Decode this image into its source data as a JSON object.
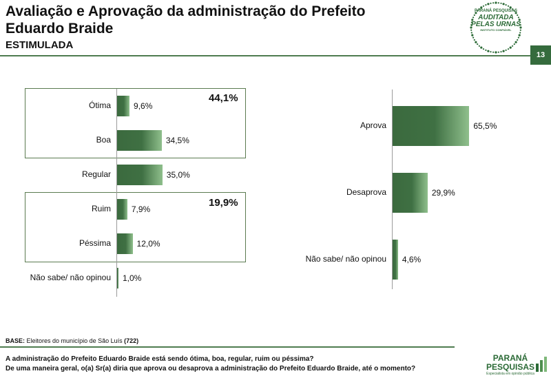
{
  "header": {
    "title": "Avaliação e Aprovação da administração do Prefeito Eduardo Braide",
    "subtitle": "ESTIMULADA",
    "page_number": "13"
  },
  "seal": {
    "line1": "PARANÁ PESQUISAS",
    "line2": "AUDITADA",
    "line3": "PELAS URNAS",
    "line4": "INSTITUTO CONFIÁVEL"
  },
  "groups": {
    "positive_total": "44,1%",
    "negative_total": "19,9%"
  },
  "chart_data": [
    {
      "type": "bar",
      "orientation": "horizontal",
      "categories": [
        "Ótima",
        "Boa",
        "Regular",
        "Ruim",
        "Péssima",
        "Não sabe/ não opinou"
      ],
      "values": [
        9.6,
        34.5,
        35.0,
        7.9,
        12.0,
        1.0
      ],
      "labels": [
        "9,6%",
        "34,5%",
        "35,0%",
        "7,9%",
        "12,0%",
        "1,0%"
      ],
      "xlim": [
        0,
        100
      ],
      "unit": "%"
    },
    {
      "type": "bar",
      "orientation": "horizontal",
      "categories": [
        "Aprova",
        "Desaprova",
        "Não sabe/ não opinou"
      ],
      "values": [
        65.5,
        29.9,
        4.6
      ],
      "labels": [
        "65,5%",
        "29,9%",
        "4,6%"
      ],
      "xlim": [
        0,
        100
      ],
      "unit": "%"
    }
  ],
  "footer": {
    "base_label": "BASE:",
    "base_text": "Eleitores do município de São Luís",
    "base_count": "(722)",
    "question1": "A administração do Prefeito Eduardo Braide está sendo ótima, boa, regular, ruim ou péssima?",
    "question2": "De uma maneira geral, o(a) Sr(a) diria que aprova ou desaprova a administração do Prefeito Eduardo Braide, até o momento?"
  },
  "brand": {
    "name_line1": "PARANÁ",
    "name_line2": "PESQUISAS",
    "tagline": "Especialista em opinião pública"
  },
  "colors": {
    "accent": "#356b3d",
    "bar_dark": "#3b6a3e",
    "bar_light": "#8fbf8c"
  }
}
